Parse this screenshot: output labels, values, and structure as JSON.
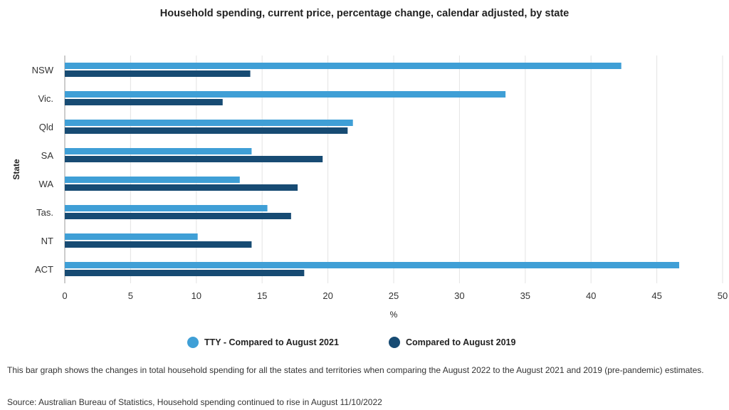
{
  "chart_data": {
    "type": "bar",
    "orientation": "horizontal",
    "title": "Household spending, current price, percentage change, calendar adjusted, by state",
    "xlabel": "%",
    "ylabel": "State",
    "categories": [
      "NSW",
      "Vic.",
      "Qld",
      "SA",
      "WA",
      "Tas.",
      "NT",
      "ACT"
    ],
    "series": [
      {
        "name": "TTY - Compared to August 2021",
        "color": "#3f9fd6",
        "values": [
          42.3,
          33.5,
          21.9,
          14.2,
          13.3,
          15.4,
          10.1,
          46.7
        ]
      },
      {
        "name": "Compared to August 2019",
        "color": "#174b73",
        "values": [
          14.1,
          12.0,
          21.5,
          19.6,
          17.7,
          17.2,
          14.2,
          18.2
        ]
      }
    ],
    "xlim": [
      0,
      50
    ],
    "xticks": [
      0,
      5,
      10,
      15,
      20,
      25,
      30,
      35,
      40,
      45,
      50
    ],
    "grid": true,
    "legend_position": "bottom"
  },
  "description": "This bar graph shows the changes in total household spending for all the states and territories when comparing the August 2022 to the August 2021 and 2019 (pre-pandemic) estimates.",
  "source": "Source: Australian Bureau of Statistics, Household spending continued to rise in August 11/10/2022"
}
